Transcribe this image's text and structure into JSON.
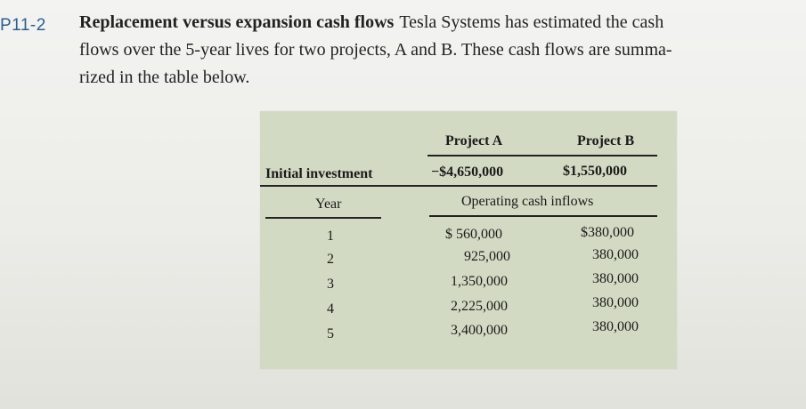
{
  "problem": {
    "number": "P11-2",
    "title": "Replacement versus expansion cash flows",
    "line1_rest": "Tesla Systems has estimated the cash",
    "line2": "flows over the 5-year lives for two projects, A and B. These cash flows are summa-",
    "line3": "rized in the table below."
  },
  "table": {
    "col_a_header": "Project A",
    "col_b_header": "Project B",
    "initial_label": "Initial investment",
    "initial_a": "−$4,650,000",
    "initial_b": "$1,550,000",
    "year_header": "Year",
    "inflows_header": "Operating cash inflows",
    "rows": [
      {
        "year": "1",
        "a": "$  560,000",
        "b": "$380,000"
      },
      {
        "year": "2",
        "a": "925,000",
        "b": "380,000"
      },
      {
        "year": "3",
        "a": "1,350,000",
        "b": "380,000"
      },
      {
        "year": "4",
        "a": "2,225,000",
        "b": "380,000"
      },
      {
        "year": "5",
        "a": "3,400,000",
        "b": "380,000"
      }
    ]
  }
}
